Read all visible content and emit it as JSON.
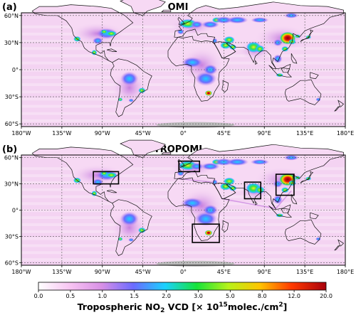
{
  "panels": [
    {
      "letter": "(a)",
      "title": "OMI",
      "boxes": []
    },
    {
      "letter": "(b)",
      "title": "TROPOMI",
      "boxes": [
        {
          "name": "eastern-us",
          "lon": [
            -100,
            -72
          ],
          "lat": [
            30,
            44
          ]
        },
        {
          "name": "europe",
          "lon": [
            -5,
            18
          ],
          "lat": [
            44,
            56
          ]
        },
        {
          "name": "india",
          "lon": [
            68,
            86
          ],
          "lat": [
            13,
            32
          ]
        },
        {
          "name": "east-china",
          "lon": [
            103,
            123
          ],
          "lat": [
            17,
            41
          ]
        },
        {
          "name": "southern-africa",
          "lon": [
            10,
            40
          ],
          "lat": [
            -37,
            -16
          ]
        }
      ]
    }
  ],
  "lat_labels": [
    "60°N",
    "30°N",
    "0°",
    "30°S",
    "60°S"
  ],
  "lon_labels": [
    "180°W",
    "135°W",
    "90°W",
    "45°W",
    "0°",
    "45°E",
    "90°E",
    "135°E",
    "180°E"
  ],
  "colorbar": {
    "ticks": [
      "0.0",
      "0.5",
      "1.0",
      "1.5",
      "2.0",
      "3.0",
      "5.0",
      "8.0",
      "12.0",
      "20.0"
    ],
    "colors": [
      "#ffffff",
      "#f7c4f2",
      "#e6a0e6",
      "#6b6bff",
      "#1ad1ff",
      "#15e33a",
      "#b7f21a",
      "#ffc400",
      "#ff3a00",
      "#a8000c"
    ],
    "label_prefix": "Tropospheric NO",
    "label_sub": "2",
    "label_suffix": " VCD [× 10",
    "label_sup": "15",
    "label_unit": "molec./cm",
    "label_unit_sup": "2",
    "label_close": "]"
  },
  "colors": {
    "background_haze": "#f4d3f2",
    "graticule": "#555555",
    "coast": "#111111",
    "antarctic_gap": "#bdbdbd"
  }
}
